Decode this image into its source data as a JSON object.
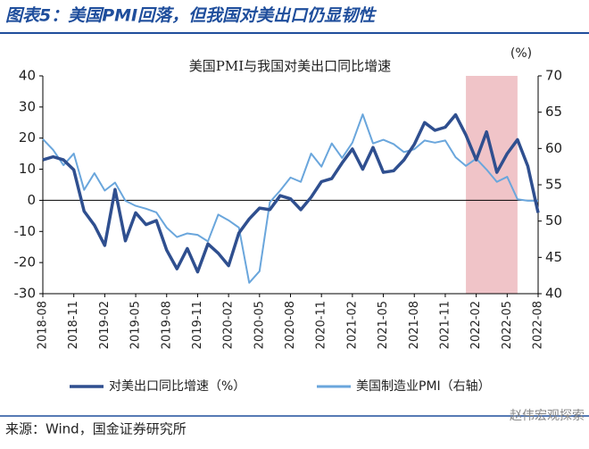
{
  "header": {
    "title": "图表5：美国PMI回落，但我国对美出口仍显韧性"
  },
  "chart_data": {
    "type": "line",
    "title": "美国PMI与我国对美出口同比增速",
    "y2_unit": "(%)",
    "categories": [
      "2018-08",
      null,
      null,
      "2018-11",
      null,
      null,
      "2019-02",
      null,
      null,
      "2019-05",
      null,
      null,
      "2019-08",
      null,
      null,
      "2019-11",
      null,
      null,
      "2020-02",
      null,
      null,
      "2020-05",
      null,
      null,
      "2020-08",
      null,
      null,
      "2020-11",
      null,
      null,
      "2021-02",
      null,
      null,
      "2021-05",
      null,
      null,
      "2021-08",
      null,
      null,
      "2021-11",
      null,
      null,
      "2022-02",
      null,
      null,
      "2022-05",
      null,
      null,
      "2022-08"
    ],
    "series": [
      {
        "name": "对美出口同比增速（%）",
        "color": "#2f4f8f",
        "axis": "y",
        "values": [
          13,
          14,
          13,
          9.8,
          -3.5,
          -8,
          -14.5,
          3.5,
          -13,
          -4,
          -7.8,
          -6.5,
          -16,
          -22,
          -15.5,
          -23,
          -14,
          -17,
          -21,
          -10.5,
          -6,
          -2.5,
          -3,
          1.5,
          0.5,
          -3,
          1,
          6,
          7,
          12,
          16.5,
          10,
          17,
          9,
          9.5,
          13,
          18,
          25,
          22.5,
          23.5,
          27.5,
          21,
          13,
          22,
          9,
          15,
          19.5,
          11,
          -4
        ]
      },
      {
        "name": "美国制造业PMI（右轴）",
        "color": "#6aa6dc",
        "axis": "y2",
        "values": [
          61.3,
          59.8,
          57.7,
          59.3,
          54.3,
          56.6,
          54.2,
          55.3,
          52.8,
          52.1,
          51.7,
          51.2,
          49.1,
          47.8,
          48.3,
          48.1,
          47.2,
          50.9,
          50.1,
          49.1,
          41.5,
          43.1,
          52.6,
          54.2,
          56.0,
          55.4,
          59.3,
          57.5,
          60.7,
          58.7,
          60.8,
          64.7,
          60.7,
          61.2,
          60.6,
          59.5,
          59.9,
          61.1,
          60.8,
          61.1,
          58.8,
          57.6,
          58.6,
          57.1,
          55.4,
          56.1,
          53.0,
          52.8,
          52.8
        ]
      }
    ],
    "ylim": [
      -30,
      40
    ],
    "yticks": [
      -30,
      -20,
      -10,
      0,
      10,
      20,
      30,
      40
    ],
    "y2lim": [
      40,
      70
    ],
    "y2ticks": [
      40,
      45,
      50,
      55,
      60,
      65,
      70
    ],
    "highlight_range": [
      41,
      46
    ],
    "highlight_color": "#f0c4c8",
    "grid": false
  },
  "footer": {
    "source": "来源：Wind，国金证券研究所",
    "watermark": "赵伟宏观探索"
  }
}
